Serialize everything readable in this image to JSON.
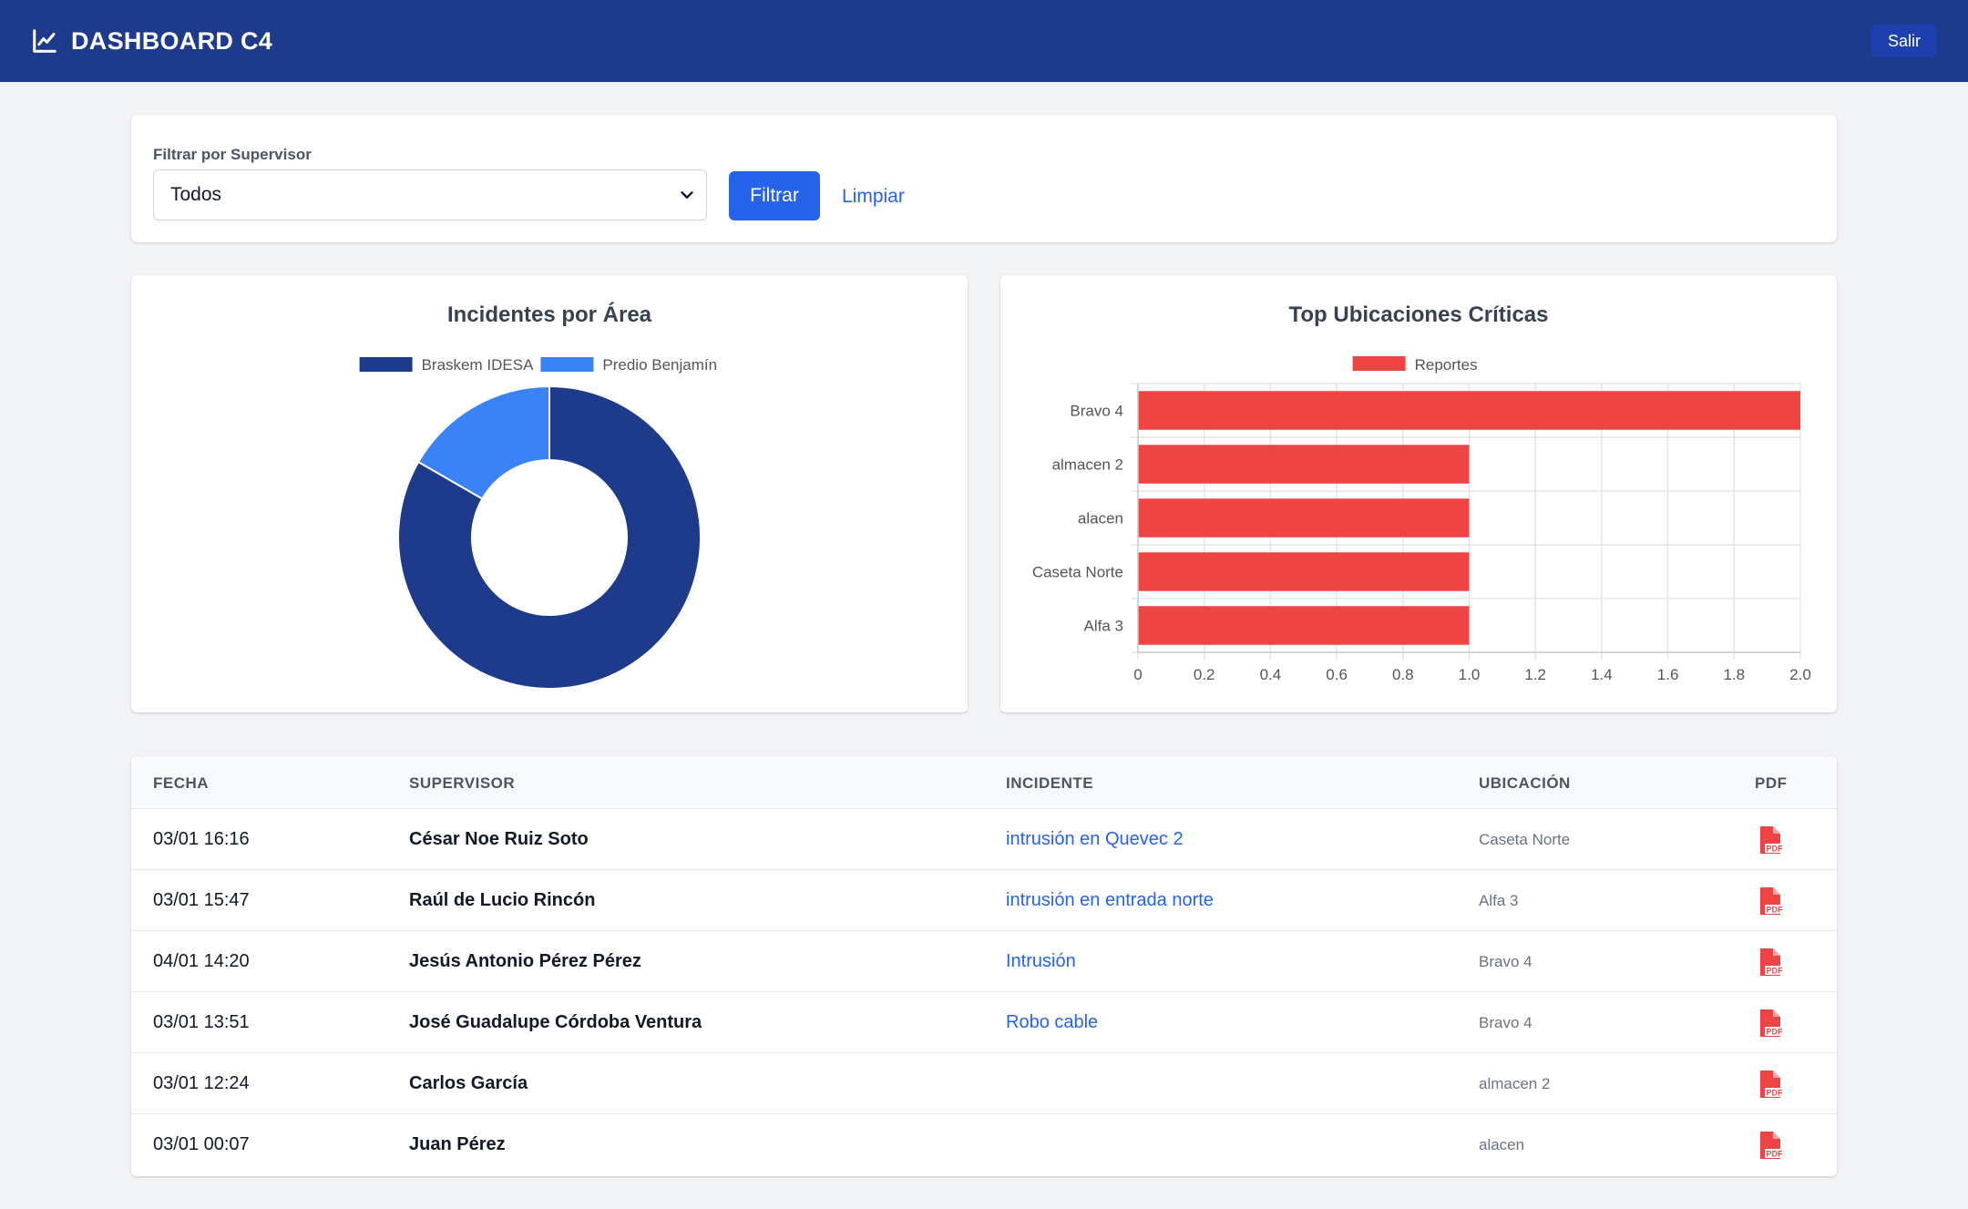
{
  "header": {
    "title": "DASHBOARD C4",
    "logout_label": "Salir",
    "icon": "line-chart-icon"
  },
  "filter": {
    "label": "Filtrar por Supervisor",
    "selected": "Todos",
    "filter_button": "Filtrar",
    "clear_link": "Limpiar"
  },
  "charts": {
    "donut_title": "Incidentes por Área",
    "bar_title": "Top Ubicaciones Críticas"
  },
  "chart_data": [
    {
      "type": "pie",
      "title": "Incidentes por Área",
      "categories": [
        "Braskem IDESA",
        "Predio Benjamín"
      ],
      "values": [
        5,
        1
      ],
      "colors": [
        "#1e3a8a",
        "#3b82f6"
      ],
      "legend": "top"
    },
    {
      "type": "bar",
      "orientation": "horizontal",
      "title": "Top Ubicaciones Críticas",
      "categories": [
        "Bravo 4",
        "almacen 2",
        "alacen",
        "Caseta Norte",
        "Alfa 3"
      ],
      "series": [
        {
          "name": "Reportes",
          "values": [
            2,
            1,
            1,
            1,
            1
          ],
          "color": "#ef4444"
        }
      ],
      "xlim": [
        0,
        2.0
      ],
      "xticks": [
        "0",
        "0.2",
        "0.4",
        "0.6",
        "0.8",
        "1.0",
        "1.2",
        "1.4",
        "1.6",
        "1.8",
        "2.0"
      ],
      "grid": true,
      "legend": "top"
    }
  ],
  "table": {
    "headers": [
      "FECHA",
      "SUPERVISOR",
      "INCIDENTE",
      "UBICACIÓN",
      "PDF"
    ],
    "rows": [
      {
        "date": "03/01 16:16",
        "supervisor": "César Noe Ruiz Soto",
        "incident": "intrusión en Quevec 2",
        "location": "Caseta Norte"
      },
      {
        "date": "03/01 15:47",
        "supervisor": "Raúl de Lucio Rincón",
        "incident": "intrusión en entrada norte",
        "location": "Alfa 3"
      },
      {
        "date": "04/01 14:20",
        "supervisor": "Jesús Antonio Pérez Pérez",
        "incident": "Intrusión",
        "location": "Bravo 4"
      },
      {
        "date": "03/01 13:51",
        "supervisor": "José Guadalupe Córdoba Ventura",
        "incident": "Robo cable",
        "location": "Bravo 4"
      },
      {
        "date": "03/01 12:24",
        "supervisor": "Carlos García",
        "incident": "",
        "location": "almacen 2"
      },
      {
        "date": "03/01 00:07",
        "supervisor": "Juan Pérez",
        "incident": "",
        "location": "alacen"
      }
    ]
  }
}
